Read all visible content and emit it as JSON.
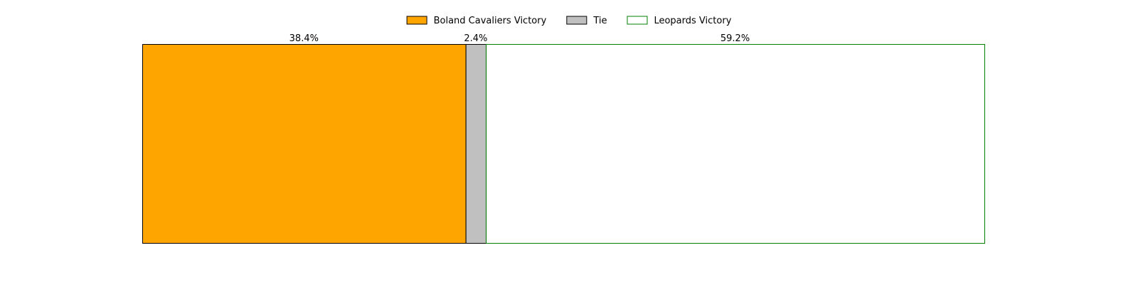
{
  "chart_data": {
    "type": "bar",
    "orientation": "horizontal",
    "stacked": true,
    "normalized_percent": true,
    "title": "",
    "xlabel": "",
    "ylabel": "",
    "axes_visible": false,
    "grid": false,
    "xlim": [
      0,
      100
    ],
    "legend": {
      "placement": "top-center",
      "columns": 3
    },
    "series": [
      {
        "name": "Boland Cavaliers Victory",
        "values": [
          38.4
        ],
        "label": "38.4%",
        "fill": "#FFA500",
        "edge": "#000000"
      },
      {
        "name": "Tie",
        "values": [
          2.4
        ],
        "label": "2.4%",
        "fill": "#C0C0C0",
        "edge": "#000000"
      },
      {
        "name": "Leopards Victory",
        "values": [
          59.2
        ],
        "label": "59.2%",
        "fill": "#FFFFFF",
        "edge": "#008000"
      }
    ]
  }
}
